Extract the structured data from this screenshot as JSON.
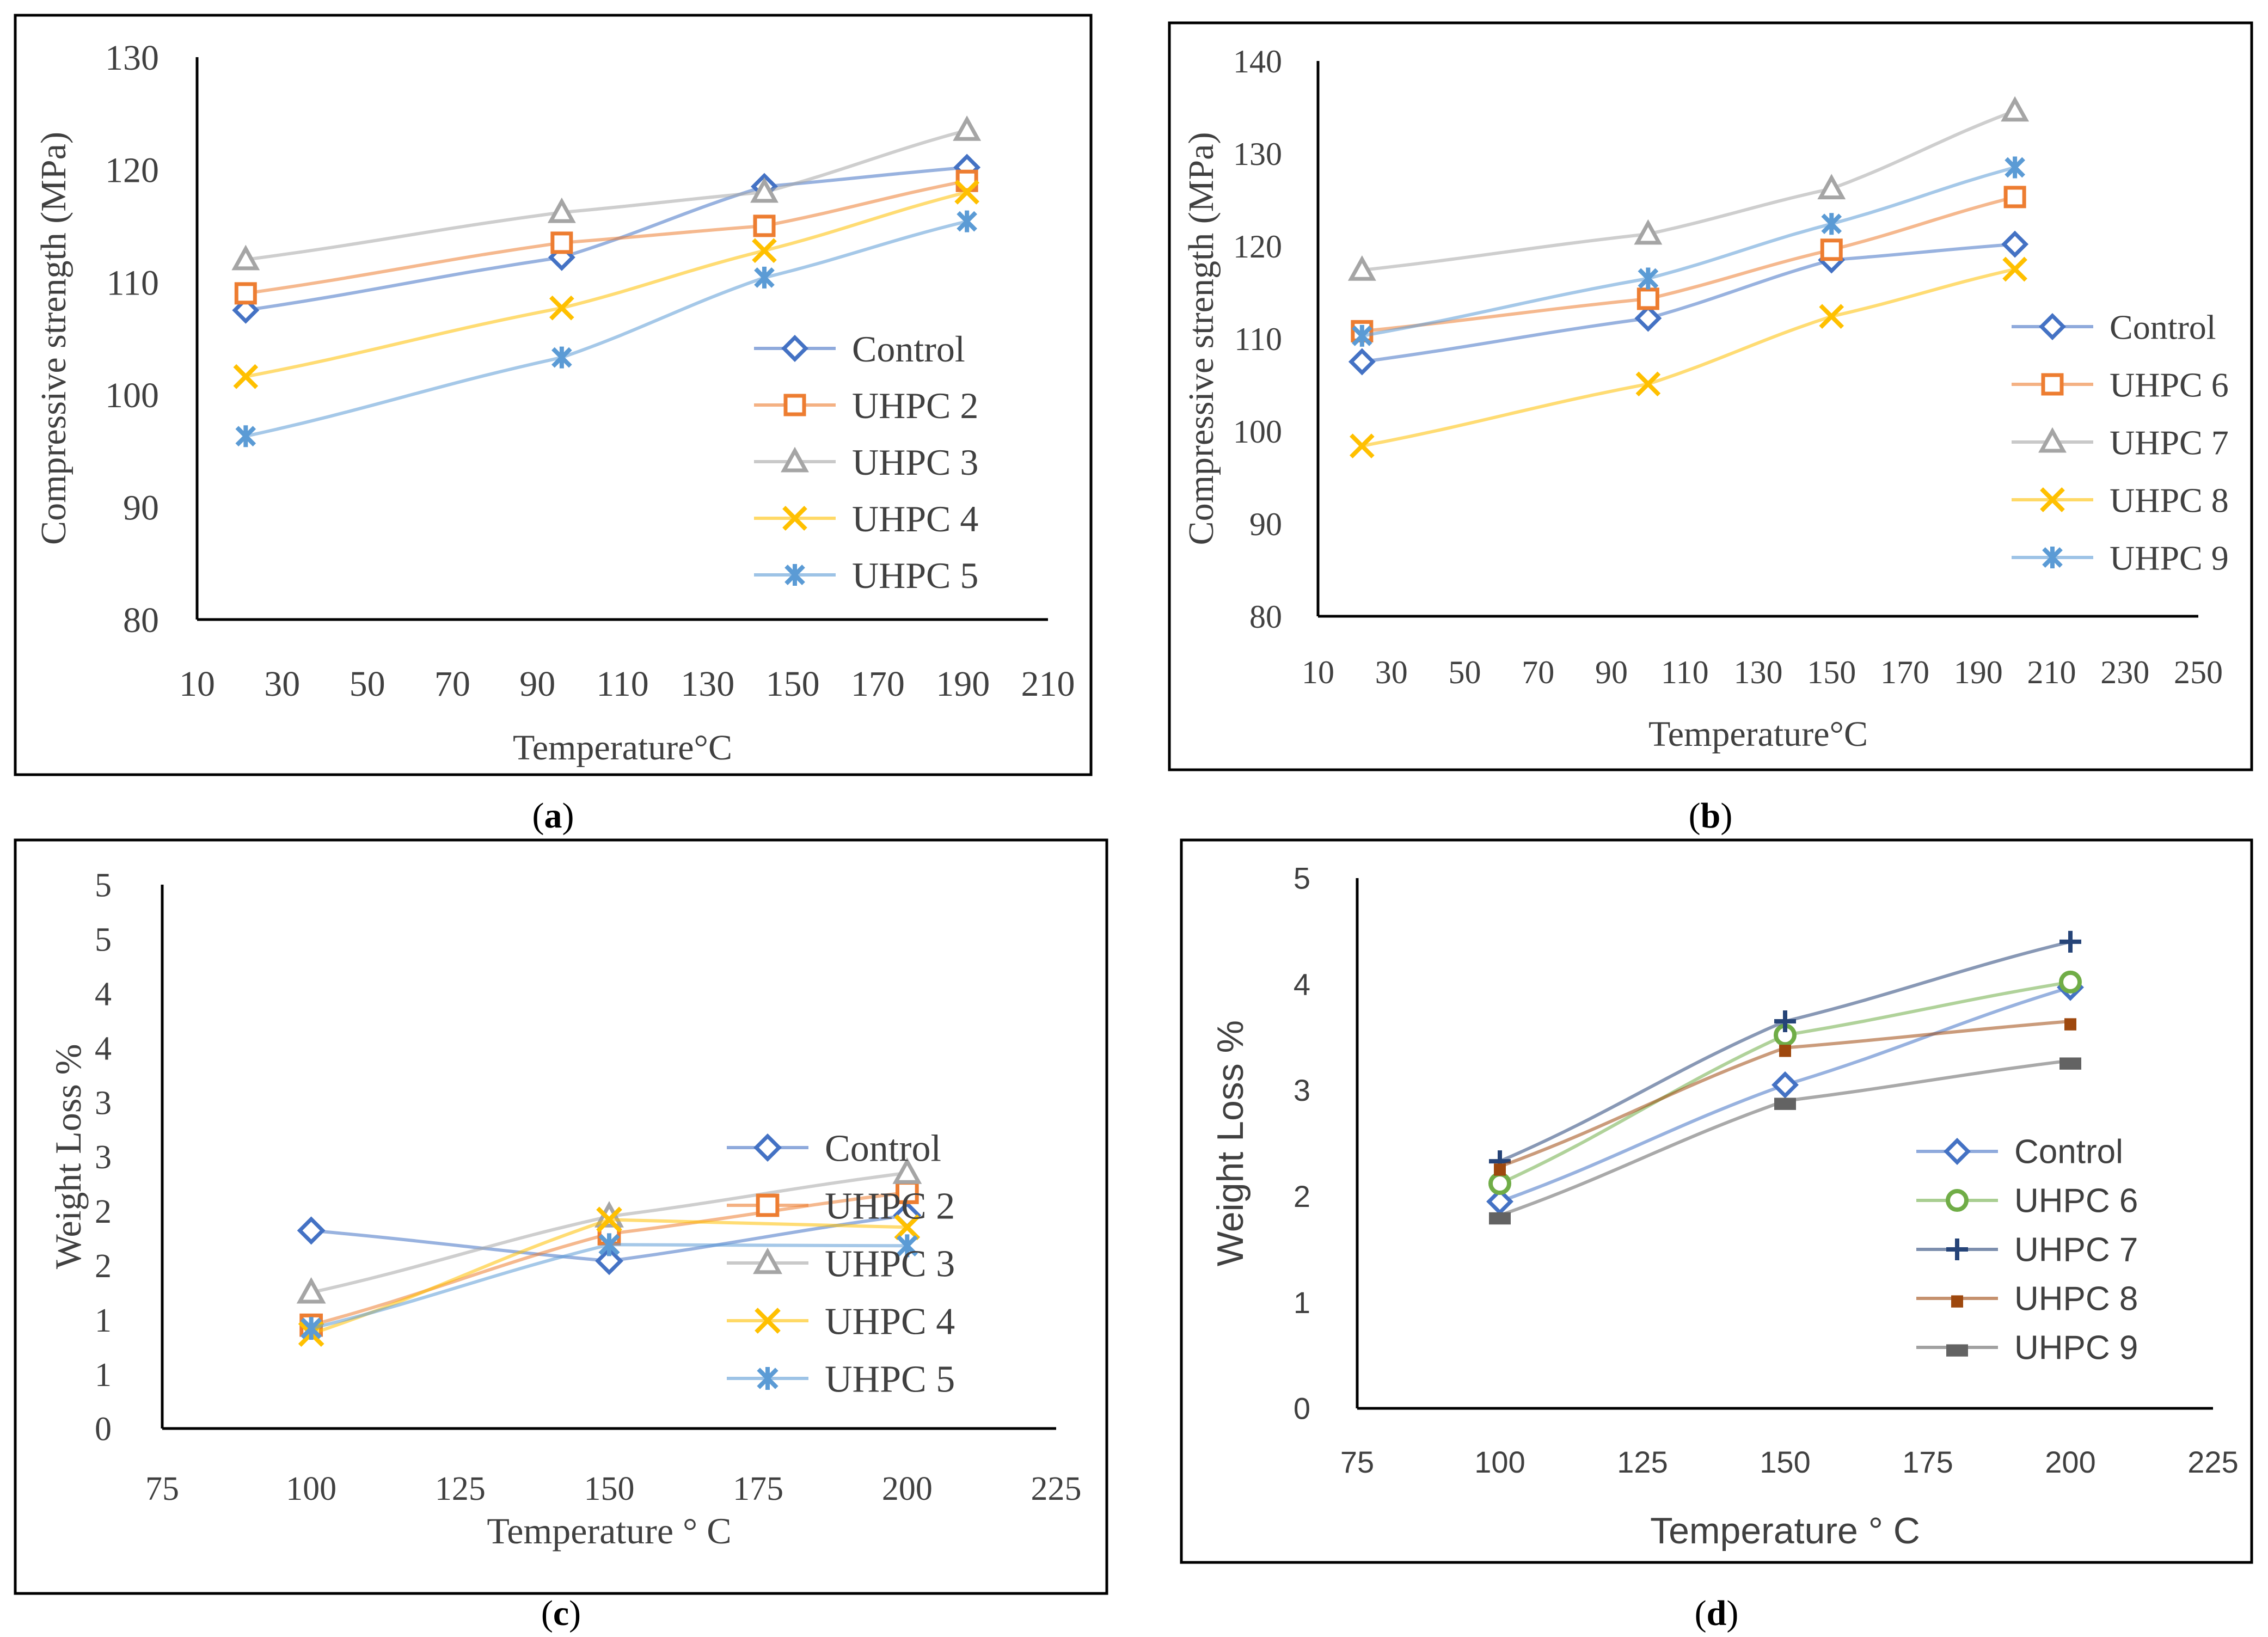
{
  "chart_data": [
    {
      "type": "line",
      "panel_label": "a",
      "title": "",
      "xlabel": "Temperature°C",
      "ylabel": "Compressive strength (MPa)",
      "xlim": [
        10,
        220
      ],
      "ylim": [
        80,
        130
      ],
      "xticks": [
        "10",
        "30",
        "50",
        "70",
        "90",
        "110",
        "130",
        "150",
        "170",
        "190",
        "210"
      ],
      "yticks": [
        "80",
        "90",
        "100",
        "110",
        "120",
        "130"
      ],
      "legend_position": "right",
      "series": [
        {
          "name": "Control",
          "color": "#4472C4",
          "marker": "diamond",
          "x": [
            22,
            100,
            150,
            200
          ],
          "y": [
            107.5,
            112.2,
            118.5,
            120.2
          ]
        },
        {
          "name": "UHPC 2",
          "color": "#ED7D31",
          "marker": "square",
          "x": [
            22,
            100,
            150,
            200
          ],
          "y": [
            109.0,
            113.5,
            115.0,
            119.0
          ]
        },
        {
          "name": "UHPC 3",
          "color": "#A5A5A5",
          "marker": "triangle",
          "x": [
            22,
            100,
            150,
            200
          ],
          "y": [
            112.0,
            116.2,
            118.0,
            123.5
          ]
        },
        {
          "name": "UHPC 4",
          "color": "#FFC000",
          "marker": "x",
          "x": [
            22,
            100,
            150,
            200
          ],
          "y": [
            101.6,
            107.7,
            112.8,
            118.0
          ]
        },
        {
          "name": "UHPC 5",
          "color": "#5B9BD5",
          "marker": "star",
          "x": [
            22,
            100,
            150,
            200
          ],
          "y": [
            96.3,
            103.3,
            110.4,
            115.4
          ]
        }
      ]
    },
    {
      "type": "line",
      "panel_label": "b",
      "title": "",
      "xlabel": "Temperature°C",
      "ylabel": "Compressive strength (MPa)",
      "xlim": [
        10,
        250
      ],
      "ylim": [
        80,
        140
      ],
      "xticks": [
        "10",
        "30",
        "50",
        "70",
        "90",
        "110",
        "130",
        "150",
        "170",
        "190",
        "210",
        "230",
        "250"
      ],
      "yticks": [
        "80",
        "90",
        "100",
        "110",
        "120",
        "130",
        "140"
      ],
      "legend_position": "right",
      "series": [
        {
          "name": "Control",
          "color": "#4472C4",
          "marker": "diamond",
          "x": [
            22,
            100,
            150,
            200
          ],
          "y": [
            107.5,
            112.2,
            118.5,
            120.2
          ]
        },
        {
          "name": "UHPC 6",
          "color": "#ED7D31",
          "marker": "square",
          "x": [
            22,
            100,
            150,
            200
          ],
          "y": [
            110.8,
            114.3,
            119.6,
            125.3
          ]
        },
        {
          "name": "UHPC 7",
          "color": "#A5A5A5",
          "marker": "triangle",
          "x": [
            22,
            100,
            150,
            200
          ],
          "y": [
            117.4,
            121.3,
            126.2,
            134.6
          ]
        },
        {
          "name": "UHPC 8",
          "color": "#FFC000",
          "marker": "x",
          "x": [
            22,
            100,
            150,
            200
          ],
          "y": [
            98.4,
            105.1,
            112.4,
            117.5
          ]
        },
        {
          "name": "UHPC 9",
          "color": "#5B9BD5",
          "marker": "star",
          "x": [
            22,
            100,
            150,
            200
          ],
          "y": [
            110.3,
            116.5,
            122.4,
            128.5
          ]
        }
      ]
    },
    {
      "type": "line",
      "panel_label": "c",
      "title": "",
      "xlabel": "Temperature ° C",
      "ylabel": "Weight Loss %",
      "xlim": [
        75,
        225
      ],
      "ylim": [
        0,
        5
      ],
      "xticks": [
        "75",
        "100",
        "125",
        "150",
        "175",
        "200",
        "225"
      ],
      "yticks": [
        "0",
        "1",
        "1",
        "2",
        "2",
        "3",
        "3",
        "4",
        "4",
        "5",
        "5"
      ],
      "legend_position": "right",
      "series": [
        {
          "name": "Control",
          "color": "#4472C4",
          "marker": "diamond",
          "x": [
            100,
            150,
            200
          ],
          "y": [
            1.82,
            1.54,
            1.96
          ]
        },
        {
          "name": "UHPC 2",
          "color": "#ED7D31",
          "marker": "square",
          "x": [
            100,
            150,
            200
          ],
          "y": [
            0.95,
            1.79,
            2.17
          ]
        },
        {
          "name": "UHPC 3",
          "color": "#A5A5A5",
          "marker": "triangle",
          "x": [
            100,
            150,
            200
          ],
          "y": [
            1.25,
            1.95,
            2.35
          ]
        },
        {
          "name": "UHPC 4",
          "color": "#FFC000",
          "marker": "x",
          "x": [
            100,
            150,
            200
          ],
          "y": [
            0.87,
            1.92,
            1.85
          ]
        },
        {
          "name": "UHPC 5",
          "color": "#5B9BD5",
          "marker": "star",
          "x": [
            100,
            150,
            200
          ],
          "y": [
            0.92,
            1.69,
            1.68
          ]
        }
      ]
    },
    {
      "type": "line",
      "panel_label": "d",
      "title": "",
      "xlabel": "Temperature ° C",
      "ylabel": "Weight Loss %",
      "xlim": [
        75,
        225
      ],
      "ylim": [
        0,
        5
      ],
      "xticks": [
        "75",
        "100",
        "125",
        "150",
        "175",
        "200",
        "225"
      ],
      "yticks": [
        "0",
        "1",
        "2",
        "3",
        "4",
        "5"
      ],
      "legend_position": "right",
      "series": [
        {
          "name": "Control",
          "color": "#4472C4",
          "marker": "diamond",
          "x": [
            100,
            150,
            200
          ],
          "y": [
            1.95,
            3.05,
            3.97
          ]
        },
        {
          "name": "UHPC 6",
          "color": "#70AD47",
          "marker": "circle",
          "x": [
            100,
            150,
            200
          ],
          "y": [
            2.12,
            3.52,
            4.02
          ]
        },
        {
          "name": "UHPC 7",
          "color": "#264478",
          "marker": "plus",
          "x": [
            100,
            150,
            200
          ],
          "y": [
            2.33,
            3.65,
            4.4
          ]
        },
        {
          "name": "UHPC 8",
          "color": "#9E480E",
          "marker": "dash",
          "x": [
            100,
            150,
            200
          ],
          "y": [
            2.28,
            3.4,
            3.65
          ]
        },
        {
          "name": "UHPC 9",
          "color": "#636363",
          "marker": "bar",
          "x": [
            100,
            150,
            200
          ],
          "y": [
            1.82,
            2.9,
            3.28
          ]
        }
      ]
    }
  ]
}
